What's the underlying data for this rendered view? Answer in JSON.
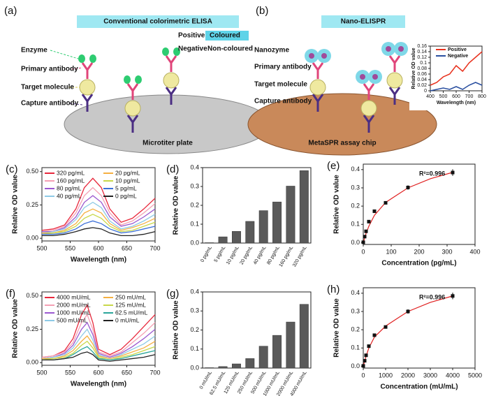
{
  "diagrams": {
    "a": {
      "label": "(a)",
      "title": "Conventional colorimetric ELISA",
      "enzyme": "Enzyme",
      "primary": "Primary antibody",
      "target": "Target molecule",
      "capture": "Capture antibody",
      "positive": "Positive",
      "coloured": "Coloured",
      "negative": "Negative",
      "non_coloured": "Non-coloured",
      "plate": "Microtiter plate"
    },
    "b": {
      "label": "(b)",
      "title": "Nano-ELISPR",
      "nanozyme": "Nanozyme",
      "primary": "Primary antibody",
      "target": "Target molecule",
      "capture": "Capture antibody",
      "chip": "MetaSPR assay chip"
    }
  },
  "chart_data": [
    {
      "type": "line",
      "xlabel": "Wavelength (nm)",
      "ylabel": "Relative OD value",
      "legend": "upper-left",
      "legend_columns": 1,
      "x": [
        400,
        450,
        500,
        550,
        600,
        625,
        650,
        700,
        750,
        800
      ],
      "xlim": [
        400,
        800
      ],
      "xticks": [
        400,
        500,
        600,
        700,
        800
      ],
      "ylim": [
        0,
        0.16
      ],
      "yticks": [
        0,
        0.02,
        0.04,
        0.06,
        0.08,
        0.1,
        0.12,
        0.14,
        0.16
      ],
      "series": [
        {
          "name": "Positive",
          "color": "#e8321e",
          "values": [
            0.02,
            0.03,
            0.05,
            0.06,
            0.09,
            0.08,
            0.07,
            0.1,
            0.12,
            0.14
          ]
        },
        {
          "name": "Negative",
          "color": "#2a4fa0",
          "values": [
            0.0,
            0.005,
            0.01,
            0.005,
            0.015,
            0.01,
            0.005,
            0.02,
            0.03,
            0.02
          ]
        }
      ]
    },
    {
      "type": "line",
      "label": "(c)",
      "xlabel": "Wavelength (nm)",
      "ylabel": "Relative OD value",
      "legend": "upper-left",
      "legend_columns": 2,
      "x": [
        500,
        520,
        540,
        560,
        575,
        590,
        605,
        620,
        640,
        660,
        680,
        700
      ],
      "xlim": [
        500,
        700
      ],
      "xticks": [
        500,
        550,
        600,
        650,
        700
      ],
      "ylim": [
        -0.02,
        0.53
      ],
      "yticks": [
        {
          "value": 0,
          "label": "0.00"
        },
        0.25,
        {
          "value": 0.5,
          "label": "0.50"
        }
      ],
      "series": [
        {
          "name": "320 pg/mL",
          "color": "#e8283c",
          "values": [
            0.06,
            0.07,
            0.1,
            0.22,
            0.38,
            0.45,
            0.38,
            0.22,
            0.12,
            0.15,
            0.22,
            0.3
          ]
        },
        {
          "name": "160 pg/mL",
          "color": "#f4a0b4",
          "values": [
            0.05,
            0.06,
            0.09,
            0.19,
            0.32,
            0.38,
            0.32,
            0.19,
            0.1,
            0.13,
            0.19,
            0.26
          ]
        },
        {
          "name": "80 pg/mL",
          "color": "#9b59d0",
          "values": [
            0.05,
            0.05,
            0.08,
            0.16,
            0.27,
            0.32,
            0.27,
            0.16,
            0.09,
            0.11,
            0.16,
            0.22
          ]
        },
        {
          "name": "40 pg/mL",
          "color": "#8ecae6",
          "values": [
            0.04,
            0.05,
            0.07,
            0.14,
            0.23,
            0.27,
            0.23,
            0.13,
            0.07,
            0.09,
            0.13,
            0.18
          ]
        },
        {
          "name": "20 pg/mL",
          "color": "#f5b041",
          "values": [
            0.04,
            0.04,
            0.06,
            0.11,
            0.19,
            0.22,
            0.19,
            0.11,
            0.06,
            0.08,
            0.11,
            0.15
          ]
        },
        {
          "name": "10 pg/mL",
          "color": "#c8d84a",
          "values": [
            0.03,
            0.04,
            0.05,
            0.09,
            0.15,
            0.18,
            0.15,
            0.09,
            0.05,
            0.06,
            0.09,
            0.12
          ]
        },
        {
          "name": "5 pg/mL",
          "color": "#3b6fd8",
          "values": [
            0.03,
            0.03,
            0.04,
            0.07,
            0.11,
            0.13,
            0.11,
            0.07,
            0.04,
            0.05,
            0.07,
            0.09
          ]
        },
        {
          "name": "0 pg/mL",
          "color": "#222222",
          "values": [
            0.02,
            0.02,
            0.03,
            0.05,
            0.07,
            0.08,
            0.07,
            0.04,
            0.02,
            0.02,
            0.03,
            0.05
          ]
        }
      ]
    },
    {
      "type": "bar",
      "label": "(d)",
      "ylabel": "Relative OD value",
      "color": "#5a5a5a",
      "categories": [
        "0 pg/mL",
        "5 pg/mL",
        "10 pg/mL",
        "20 pg/mL",
        "40 pg/mL",
        "80 pg/mL",
        "160 pg/mL",
        "320 pg/mL"
      ],
      "values": [
        0.002,
        0.033,
        0.062,
        0.115,
        0.172,
        0.218,
        0.302,
        0.384
      ],
      "ylim": [
        0,
        0.4
      ],
      "yticks": [
        {
          "value": 0,
          "label": "0.0"
        },
        0.1,
        0.2,
        0.3,
        0.4
      ]
    },
    {
      "type": "scatter",
      "label": "(e)",
      "xlabel": "Concentration (pg/mL)",
      "ylabel": "Relative OD value",
      "annotation": "R²=0.996",
      "color": "#111111",
      "fit_color": "#e02020",
      "x": [
        0,
        5,
        10,
        20,
        40,
        80,
        160,
        320
      ],
      "values": [
        0.002,
        0.033,
        0.062,
        0.115,
        0.172,
        0.218,
        0.302,
        0.384
      ],
      "errors": [
        0.003,
        0.005,
        0.005,
        0.006,
        0.008,
        0.008,
        0.012,
        0.018
      ],
      "fit": {
        "x": [
          0,
          10,
          20,
          40,
          80,
          120,
          160,
          240,
          320
        ],
        "values": [
          0,
          0.05,
          0.09,
          0.15,
          0.22,
          0.26,
          0.3,
          0.35,
          0.385
        ]
      },
      "xlim": [
        0,
        400
      ],
      "xticks": [
        0,
        100,
        200,
        300,
        400
      ],
      "ylim": [
        -0.01,
        0.43
      ],
      "yticks": [
        {
          "value": 0,
          "label": "0.0"
        },
        0.1,
        0.2,
        0.3,
        0.4
      ]
    },
    {
      "type": "line",
      "label": "(f)",
      "xlabel": "Wavelength (nm)",
      "ylabel": "Relative OD value",
      "legend": "upper-left",
      "legend_columns": 2,
      "x": [
        500,
        520,
        540,
        555,
        570,
        580,
        590,
        600,
        620,
        640,
        660,
        680,
        700
      ],
      "xlim": [
        500,
        700
      ],
      "xticks": [
        500,
        550,
        600,
        650,
        700
      ],
      "ylim": [
        -0.02,
        0.53
      ],
      "yticks": [
        {
          "value": 0,
          "label": "0.00"
        },
        0.25,
        {
          "value": 0.5,
          "label": "0.50"
        }
      ],
      "series": [
        {
          "name": "4000 mU/mL",
          "color": "#e8283c",
          "values": [
            0.04,
            0.05,
            0.09,
            0.18,
            0.36,
            0.43,
            0.3,
            0.1,
            0.06,
            0.1,
            0.18,
            0.27,
            0.36
          ]
        },
        {
          "name": "2000 mU/mL",
          "color": "#f4a0b4",
          "values": [
            0.04,
            0.05,
            0.08,
            0.15,
            0.3,
            0.36,
            0.25,
            0.08,
            0.05,
            0.08,
            0.15,
            0.22,
            0.3
          ]
        },
        {
          "name": "1000 mU/mL",
          "color": "#9b59d0",
          "values": [
            0.03,
            0.04,
            0.07,
            0.13,
            0.25,
            0.3,
            0.21,
            0.07,
            0.04,
            0.07,
            0.12,
            0.18,
            0.25
          ]
        },
        {
          "name": "500 mU/mL",
          "color": "#8ecae6",
          "values": [
            0.03,
            0.04,
            0.06,
            0.11,
            0.2,
            0.25,
            0.17,
            0.06,
            0.03,
            0.06,
            0.1,
            0.14,
            0.2
          ]
        },
        {
          "name": "250 mU/mL",
          "color": "#f5b041",
          "values": [
            0.03,
            0.03,
            0.05,
            0.09,
            0.16,
            0.2,
            0.14,
            0.05,
            0.03,
            0.05,
            0.08,
            0.11,
            0.16
          ]
        },
        {
          "name": "125 mU/mL",
          "color": "#c8d84a",
          "values": [
            0.02,
            0.03,
            0.04,
            0.07,
            0.13,
            0.16,
            0.11,
            0.04,
            0.02,
            0.04,
            0.06,
            0.09,
            0.12
          ]
        },
        {
          "name": "62.5 mU/mL",
          "color": "#2aa59a",
          "values": [
            0.02,
            0.02,
            0.03,
            0.06,
            0.1,
            0.12,
            0.08,
            0.03,
            0.02,
            0.03,
            0.05,
            0.07,
            0.09
          ]
        },
        {
          "name": "0 mU/mL",
          "color": "#222222",
          "values": [
            0.02,
            0.02,
            0.03,
            0.04,
            0.07,
            0.08,
            0.06,
            0.02,
            0.01,
            0.02,
            0.03,
            0.04,
            0.06
          ]
        }
      ]
    },
    {
      "type": "bar",
      "label": "(g)",
      "ylabel": "Relative OD value",
      "color": "#5a5a5a",
      "categories": [
        "0 mU/mL",
        "62.5 mU/mL",
        "125 mU/mL",
        "250 mU/mL",
        "500 mU/mL",
        "1000 mU/mL",
        "2000 mU/mL",
        "4000 mU/mL"
      ],
      "values": [
        0.002,
        0.008,
        0.022,
        0.05,
        0.115,
        0.172,
        0.242,
        0.335
      ],
      "ylim": [
        0,
        0.4
      ],
      "yticks": [
        {
          "value": 0,
          "label": "0.0"
        },
        0.1,
        0.2,
        0.3,
        0.4
      ]
    },
    {
      "type": "scatter",
      "label": "(h)",
      "xlabel": "Concentration (mU/mL)",
      "ylabel": "Relative OD value",
      "annotation": "R²=0.996",
      "color": "#111111",
      "fit_color": "#e02020",
      "x": [
        0,
        62.5,
        125,
        250,
        500,
        1000,
        2000,
        4000
      ],
      "values": [
        0.002,
        0.03,
        0.06,
        0.11,
        0.17,
        0.215,
        0.3,
        0.385
      ],
      "errors": [
        0.003,
        0.005,
        0.005,
        0.006,
        0.008,
        0.008,
        0.012,
        0.018
      ],
      "fit": {
        "x": [
          0,
          125,
          250,
          500,
          1000,
          1500,
          2000,
          3000,
          4000
        ],
        "values": [
          0,
          0.055,
          0.1,
          0.16,
          0.22,
          0.26,
          0.3,
          0.35,
          0.385
        ]
      },
      "xlim": [
        0,
        5000
      ],
      "xticks": [
        0,
        1000,
        2000,
        3000,
        4000,
        5000
      ],
      "ylim": [
        -0.01,
        0.43
      ],
      "yticks": [
        {
          "value": 0,
          "label": "0.0"
        },
        0.1,
        0.2,
        0.3,
        0.4
      ]
    }
  ]
}
